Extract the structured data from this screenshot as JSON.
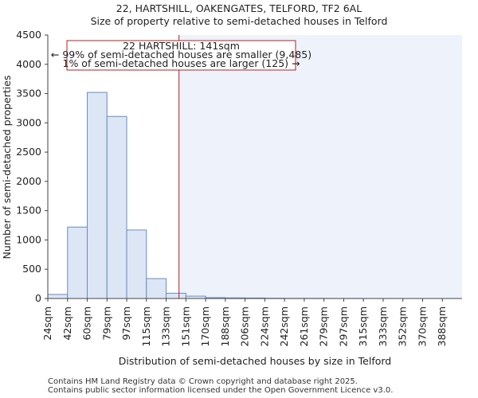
{
  "chart_data": {
    "type": "bar",
    "title_line1": "22, HARTSHILL, OAKENGATES, TELFORD, TF2 6AL",
    "title_line2": "Size of property relative to semi-detached houses in Telford",
    "xlabel": "Distribution of semi-detached houses by size in Telford",
    "ylabel": "Number of semi-detached properties",
    "categories": [
      "24sqm",
      "42sqm",
      "60sqm",
      "79sqm",
      "97sqm",
      "115sqm",
      "133sqm",
      "151sqm",
      "170sqm",
      "188sqm",
      "206sqm",
      "224sqm",
      "242sqm",
      "261sqm",
      "279sqm",
      "297sqm",
      "315sqm",
      "333sqm",
      "352sqm",
      "370sqm",
      "388sqm"
    ],
    "values": [
      70,
      1220,
      3520,
      3110,
      1170,
      340,
      90,
      40,
      15,
      10,
      8,
      4,
      2,
      2,
      1,
      1,
      0,
      0,
      0,
      0,
      0
    ],
    "ylim": [
      0,
      4500
    ],
    "yticks": [
      0,
      500,
      1000,
      1500,
      2000,
      2500,
      3000,
      3500,
      4000,
      4500
    ],
    "property_line": {
      "value_sqm": 141,
      "bin_position": 6.65,
      "label": "22 HARTSHILL: 141sqm",
      "text_smaller": "← 99% of semi-detached houses are smaller (9,485)",
      "text_larger": "1% of semi-detached houses are larger (125) →",
      "color": "#b22222"
    },
    "bar_fill": "#dce6f5",
    "bar_stroke": "#6a8cc4",
    "highlight_fill": "#eef2fb",
    "grid": false
  },
  "footer": {
    "line1": "Contains HM Land Registry data © Crown copyright and database right 2025.",
    "line2": "Contains public sector information licensed under the Open Government Licence v3.0."
  }
}
